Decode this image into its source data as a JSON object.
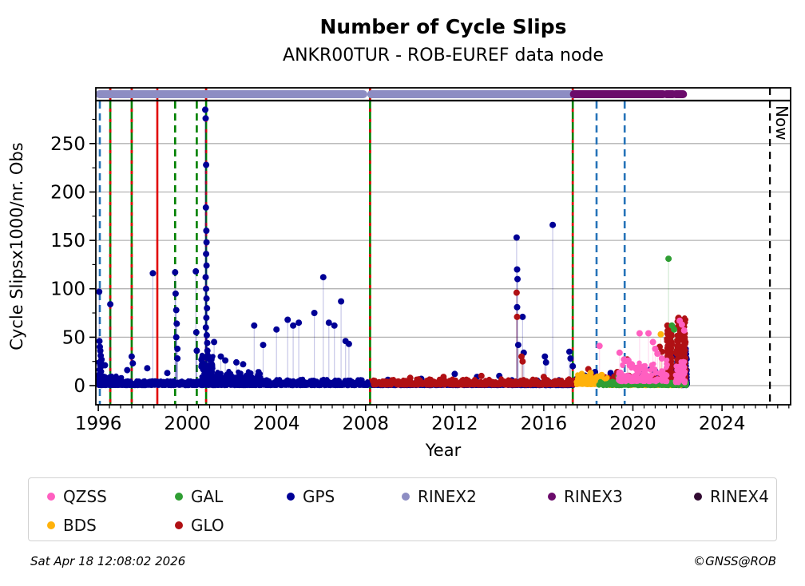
{
  "footer": {
    "timestamp": "Sat Apr 18 12:08:02 2026",
    "copyright": "©GNSS@ROB"
  },
  "legend": {
    "items": [
      {
        "label": "QZSS",
        "color": "#ff5fc0",
        "col": 0,
        "row": 0
      },
      {
        "label": "GAL",
        "color": "#2f9e33",
        "col": 1,
        "row": 0
      },
      {
        "label": "GPS",
        "color": "#000096",
        "col": 2,
        "row": 0
      },
      {
        "label": "RINEX2",
        "color": "#8d8dc3",
        "col": 3,
        "row": 0
      },
      {
        "label": "RINEX3",
        "color": "#6b0b6b",
        "col": 4,
        "row": 0
      },
      {
        "label": "RINEX4",
        "color": "#320b32",
        "col": 5,
        "row": 0
      },
      {
        "label": "BDS",
        "color": "#ffb20a",
        "col": 0,
        "row": 1
      },
      {
        "label": "GLO",
        "color": "#b01014",
        "col": 1,
        "row": 1
      }
    ]
  },
  "chart_data": {
    "type": "scatter",
    "title": "Number of Cycle Slips",
    "subtitle": "ANKR00TUR - ROB-EUREF data node",
    "xlabel": "Year",
    "ylabel": "Cycle Slipsx1000/nr. Obs",
    "xlim": [
      1995.89,
      2027.08
    ],
    "ylim": [
      -19.8,
      307.6
    ],
    "xticks": [
      1996,
      2000,
      2004,
      2008,
      2012,
      2016,
      2020,
      2024
    ],
    "yticks": [
      0,
      50,
      100,
      150,
      200,
      250
    ],
    "yticks_minor": [
      25,
      75,
      125,
      175,
      225,
      275
    ],
    "xtick_minor_step": 0.5,
    "grid": "horizontal",
    "grid_color": "#b3b3b3",
    "legend_position": "bottom",
    "now_line": {
      "year": 2026.15,
      "label": "Now",
      "color": "#000000",
      "style": "dashed"
    },
    "event_lines": [
      {
        "year": 1996.07,
        "color": "#2673b8",
        "style": "dashed",
        "through_strip": false
      },
      {
        "year": 1996.54,
        "color": "#008000",
        "style": "solid",
        "overlay": "#e10000",
        "through_strip": true
      },
      {
        "year": 1997.5,
        "color": "#008000",
        "style": "solid",
        "overlay": "#e10000",
        "through_strip": true
      },
      {
        "year": 1998.65,
        "color": "#e10000",
        "style": "solid",
        "through_strip": true
      },
      {
        "year": 1999.45,
        "color": "#008000",
        "style": "dashed",
        "through_strip": false
      },
      {
        "year": 2000.42,
        "color": "#008000",
        "style": "dashed",
        "through_strip": false
      },
      {
        "year": 2000.84,
        "color": "#008000",
        "style": "solid",
        "overlay": "#e10000",
        "through_strip": true
      },
      {
        "year": 2008.2,
        "color": "#008000",
        "style": "solid",
        "overlay": "#e10000",
        "through_strip": true
      },
      {
        "year": 2017.3,
        "color": "#008000",
        "style": "solid",
        "overlay": "#e10000",
        "through_strip": true
      },
      {
        "year": 2018.37,
        "color": "#2673b8",
        "style": "dashed",
        "through_strip": false
      },
      {
        "year": 2019.63,
        "color": "#2673b8",
        "style": "dashed",
        "through_strip": false
      }
    ],
    "header_strip": {
      "rinex2": {
        "label": "RINEX2",
        "color": "#8d8dc3",
        "segments": [
          [
            1996.05,
            2007.9
          ],
          [
            2008.25,
            2017.3
          ]
        ]
      },
      "rinex3": {
        "label": "RINEX3",
        "color": "#6b0b6b",
        "segments": [
          [
            2017.35,
            2021.35
          ],
          [
            2021.5,
            2021.8
          ],
          [
            2021.92,
            2022.25
          ]
        ]
      }
    },
    "series": [
      {
        "name": "GPS",
        "color": "#000096",
        "spikes": [
          [
            1996.04,
            97
          ],
          [
            1996.05,
            46
          ],
          [
            1996.07,
            40
          ],
          [
            1996.09,
            36
          ],
          [
            1996.11,
            31
          ],
          [
            1996.13,
            26
          ],
          [
            1996.3,
            21
          ],
          [
            1996.54,
            84
          ],
          [
            1997.3,
            16
          ],
          [
            1997.5,
            30
          ],
          [
            1997.55,
            23
          ],
          [
            1998.2,
            18
          ],
          [
            1998.45,
            116
          ],
          [
            1999.1,
            13
          ],
          [
            1999.45,
            117
          ],
          [
            1999.47,
            95
          ],
          [
            1999.5,
            78
          ],
          [
            1999.52,
            64
          ],
          [
            1999.5,
            50
          ],
          [
            1999.55,
            38
          ],
          [
            1999.55,
            28
          ],
          [
            2000.38,
            118
          ],
          [
            2000.4,
            55
          ],
          [
            2000.42,
            36
          ],
          [
            2000.8,
            285
          ],
          [
            2000.82,
            276
          ],
          [
            2000.84,
            228
          ],
          [
            2000.83,
            184
          ],
          [
            2000.85,
            160
          ],
          [
            2000.86,
            148
          ],
          [
            2000.84,
            136
          ],
          [
            2000.86,
            124
          ],
          [
            2000.82,
            112
          ],
          [
            2000.84,
            100
          ],
          [
            2000.86,
            90
          ],
          [
            2000.88,
            80
          ],
          [
            2000.85,
            70
          ],
          [
            2000.83,
            60
          ],
          [
            2000.87,
            52
          ],
          [
            2000.89,
            44
          ],
          [
            2000.9,
            36
          ],
          [
            2001.2,
            45
          ],
          [
            2001.5,
            30
          ],
          [
            2001.7,
            26
          ],
          [
            2002.2,
            24
          ],
          [
            2002.5,
            22
          ],
          [
            2003.0,
            62
          ],
          [
            2003.4,
            42
          ],
          [
            2004.0,
            58
          ],
          [
            2004.5,
            68
          ],
          [
            2004.75,
            62
          ],
          [
            2005.0,
            65
          ],
          [
            2005.7,
            75
          ],
          [
            2006.1,
            112
          ],
          [
            2006.35,
            65
          ],
          [
            2006.6,
            62
          ],
          [
            2006.9,
            87
          ],
          [
            2007.1,
            46
          ],
          [
            2007.25,
            43
          ],
          [
            2009.0,
            6
          ],
          [
            2010.5,
            7
          ],
          [
            2012.0,
            12
          ],
          [
            2013.0,
            9
          ],
          [
            2014.0,
            10
          ],
          [
            2014.78,
            153
          ],
          [
            2014.8,
            120
          ],
          [
            2014.82,
            110
          ],
          [
            2014.8,
            81
          ],
          [
            2014.85,
            42
          ],
          [
            2015.05,
            71
          ],
          [
            2015.1,
            34
          ],
          [
            2016.05,
            30
          ],
          [
            2016.1,
            24
          ],
          [
            2016.4,
            166
          ],
          [
            2017.15,
            35
          ],
          [
            2017.2,
            28
          ],
          [
            2017.3,
            20
          ],
          [
            2018.3,
            14
          ],
          [
            2019.0,
            13
          ],
          [
            2020.3,
            16
          ],
          [
            2020.8,
            17
          ],
          [
            2021.0,
            15
          ],
          [
            2021.6,
            33
          ],
          [
            2021.65,
            28
          ],
          [
            2022.05,
            36
          ],
          [
            2022.1,
            32
          ],
          [
            2022.3,
            28
          ]
        ],
        "bands": [
          [
            1996.0,
            1997.05,
            0,
            10,
            240,
            0
          ],
          [
            1996.0,
            1996.18,
            0,
            28,
            36,
            0
          ],
          [
            1997.0,
            2000.75,
            0,
            5,
            380,
            0
          ],
          [
            2000.6,
            2001.15,
            0,
            32,
            130,
            0
          ],
          [
            2001.05,
            2003.3,
            0,
            15,
            380,
            7
          ],
          [
            2003.3,
            2008.1,
            0,
            7,
            480,
            6
          ],
          [
            2008.25,
            2017.35,
            0,
            3.5,
            850,
            5
          ],
          [
            2014.4,
            2017.35,
            0,
            7,
            170,
            6
          ],
          [
            2017.4,
            2021.55,
            1.5,
            11,
            620,
            5
          ],
          [
            2021.55,
            2021.8,
            0,
            33,
            130,
            0
          ],
          [
            2021.95,
            2022.45,
            0,
            38,
            240,
            0
          ]
        ]
      },
      {
        "name": "GLO",
        "color": "#b01014",
        "spikes": [
          [
            2010.0,
            8
          ],
          [
            2011.5,
            9
          ],
          [
            2013.2,
            10
          ],
          [
            2016.0,
            9
          ],
          [
            2014.78,
            96
          ],
          [
            2014.8,
            71
          ],
          [
            2015.0,
            30
          ],
          [
            2015.05,
            25
          ],
          [
            2018.0,
            17
          ],
          [
            2019.3,
            14
          ],
          [
            2019.75,
            27
          ],
          [
            2020.5,
            18
          ],
          [
            2021.2,
            40
          ],
          [
            2021.3,
            35
          ],
          [
            2021.55,
            62
          ],
          [
            2021.6,
            58
          ],
          [
            2021.65,
            52
          ],
          [
            2021.7,
            46
          ],
          [
            2022.05,
            70
          ],
          [
            2022.1,
            66
          ],
          [
            2022.15,
            60
          ],
          [
            2022.2,
            55
          ],
          [
            2022.25,
            48
          ],
          [
            2022.3,
            40
          ]
        ],
        "bands": [
          [
            2008.3,
            2017.35,
            0.5,
            7.5,
            600,
            6
          ],
          [
            2017.4,
            2021.5,
            2,
            11,
            400,
            6
          ],
          [
            2021.5,
            2021.78,
            3,
            62,
            150,
            0
          ],
          [
            2021.95,
            2022.4,
            3,
            70,
            220,
            0
          ]
        ]
      },
      {
        "name": "BDS",
        "color": "#ffb20a",
        "spikes": [
          [
            2017.55,
            10
          ],
          [
            2017.7,
            12
          ],
          [
            2017.9,
            9
          ],
          [
            2018.1,
            13
          ],
          [
            2018.4,
            8
          ],
          [
            2018.6,
            11
          ],
          [
            2021.25,
            53
          ]
        ],
        "bands": [
          [
            2017.45,
            2018.85,
            1,
            12,
            110,
            7
          ],
          [
            2018.85,
            2022.35,
            0,
            3.5,
            150,
            0
          ]
        ]
      },
      {
        "name": "GAL",
        "color": "#2f9e33",
        "spikes": [
          [
            2019.35,
            9
          ],
          [
            2020.5,
            6
          ],
          [
            2021.6,
            131
          ],
          [
            2021.75,
            62
          ],
          [
            2021.85,
            58
          ]
        ],
        "bands": [
          [
            2018.45,
            2022.42,
            0,
            4.5,
            240,
            5
          ]
        ]
      },
      {
        "name": "QZSS",
        "color": "#ff5fc0",
        "spikes": [
          [
            2018.5,
            41
          ],
          [
            2019.4,
            34
          ],
          [
            2019.6,
            27
          ],
          [
            2019.8,
            26
          ],
          [
            2019.95,
            22
          ],
          [
            2020.3,
            54
          ],
          [
            2020.7,
            54
          ],
          [
            2020.9,
            45
          ],
          [
            2021.0,
            38
          ],
          [
            2021.1,
            33
          ],
          [
            2021.3,
            28
          ],
          [
            2022.1,
            67
          ],
          [
            2022.2,
            63
          ],
          [
            2022.3,
            57
          ]
        ],
        "bands": [
          [
            2019.35,
            2021.55,
            4,
            30,
            150,
            5
          ],
          [
            2021.9,
            2022.35,
            3,
            25,
            50,
            0
          ]
        ]
      },
      {
        "name": "RINEX2",
        "color": "#8d8dc3"
      },
      {
        "name": "RINEX3",
        "color": "#6b0b6b"
      },
      {
        "name": "RINEX4",
        "color": "#320b32"
      }
    ]
  }
}
